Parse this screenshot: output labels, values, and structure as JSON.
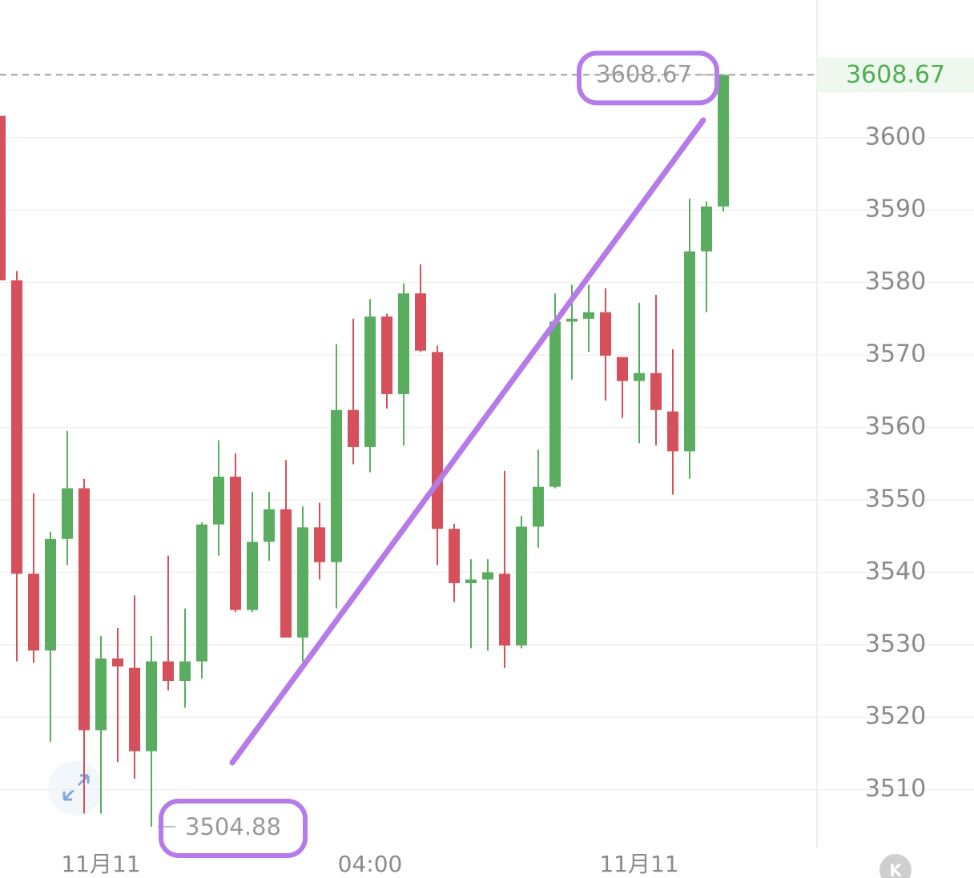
{
  "chart_data": {
    "type": "candlestick",
    "categories": [
      null,
      null,
      null,
      null,
      null,
      null,
      "11月11",
      null,
      null,
      null,
      null,
      null,
      null,
      null,
      null,
      null,
      null,
      null,
      null,
      null,
      null,
      null,
      "04:00",
      null,
      null,
      null,
      null,
      null,
      null,
      null,
      null,
      null,
      null,
      null,
      null,
      null,
      null,
      null,
      "11月11",
      null,
      null,
      null,
      null,
      null
    ],
    "series": [
      {
        "up_color": "#5aad5f",
        "down_color": "#d5505a",
        "open": [
          3603,
          3580.3,
          3539.8,
          3529.2,
          3544.6,
          3551.6,
          3518.2,
          3528.1,
          3526.8,
          3515.3,
          3527.7,
          3525,
          3527.7,
          3546.6,
          3553.2,
          3534.8,
          3544.2,
          3548.7,
          3531,
          3546.2,
          3541.4,
          3562.4,
          3557.3,
          3575.3,
          3564.6,
          3578.5,
          3570.4,
          3546,
          3538.5,
          3539,
          3539.8,
          3529.9,
          3546.3,
          3551.8,
          3574.6,
          3575,
          3575.9,
          3569.7,
          3566.4,
          3567.5,
          3562.2,
          3556.7,
          3584.3,
          3590.5
        ],
        "high": [
          3603,
          3581.6,
          3550.9,
          3545.6,
          3559.5,
          3552.9,
          3531.2,
          3532.3,
          3536.8,
          3531.2,
          3542.3,
          3535,
          3546.9,
          3558.2,
          3556.4,
          3551.1,
          3551.1,
          3555.5,
          3549.1,
          3549.6,
          3571.5,
          3575,
          3577.7,
          3575.7,
          3579.9,
          3582.5,
          3571.3,
          3546.7,
          3541.8,
          3541.8,
          3554,
          3547.8,
          3556.9,
          3578.5,
          3579.7,
          3579.7,
          3579.2,
          3569.7,
          3577.2,
          3578.3,
          3570.8,
          3591.6,
          3591.2,
          3608.67
        ],
        "low": [
          3580.3,
          3527.7,
          3527.5,
          3516.6,
          3541,
          3506.7,
          3506.7,
          3513.8,
          3511.5,
          3504.88,
          3523.7,
          3521.3,
          3525.3,
          3542.3,
          3534.5,
          3534.5,
          3541.6,
          3531,
          3527.7,
          3539,
          3535,
          3554.9,
          3553.8,
          3562.6,
          3557.5,
          3570.4,
          3541,
          3535.9,
          3529.5,
          3529.2,
          3526.8,
          3529.5,
          3543.4,
          3551.6,
          3566.6,
          3570.4,
          3563.7,
          3561.3,
          3557.8,
          3557.5,
          3550.7,
          3552.9,
          3575.9,
          3589.8
        ],
        "close": [
          3580.3,
          3539.8,
          3529.2,
          3544.6,
          3551.6,
          3518.2,
          3528.1,
          3527,
          3515.3,
          3527.7,
          3525,
          3527.7,
          3546.6,
          3553.2,
          3534.8,
          3544.2,
          3548.7,
          3531,
          3546.2,
          3541.4,
          3562.4,
          3557.3,
          3575.3,
          3564.6,
          3578.5,
          3570.6,
          3546,
          3538.5,
          3539,
          3540,
          3529.9,
          3546.3,
          3551.8,
          3574.6,
          3575,
          3575.9,
          3569.9,
          3566.4,
          3567.5,
          3562.4,
          3556.7,
          3584.3,
          3590.5,
          3608.67
        ]
      }
    ],
    "ylim": [
      3502,
      3619
    ],
    "yticks": [
      3510,
      3520,
      3530,
      3540,
      3550,
      3560,
      3570,
      3580,
      3590,
      3600
    ],
    "grid": true,
    "axis_side": "right"
  },
  "ui": {
    "badge": "K"
  }
}
